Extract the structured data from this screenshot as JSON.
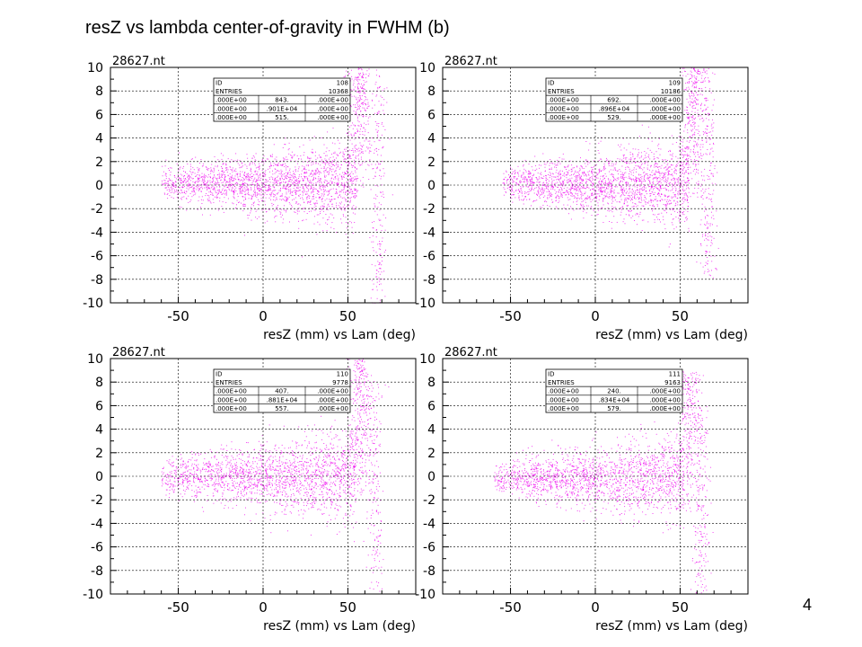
{
  "slide": {
    "title": "resZ vs lambda center-of-gravity in FWHM (b)",
    "page_number": "4"
  },
  "colors": {
    "points": "#ee00ee",
    "axes": "#000000",
    "grid": "#000000"
  },
  "chart_data": [
    {
      "type": "scatter",
      "title": "28627.nt",
      "xlabel": "resZ (mm) vs Lam (deg)",
      "ylabel": "",
      "xlim": [
        -90,
        90
      ],
      "ylim": [
        -10,
        10
      ],
      "xticks": [
        "-50",
        "0",
        "50"
      ],
      "xtick_values": [
        -50,
        0,
        50
      ],
      "yticks": [
        "10",
        "8",
        "6",
        "4",
        "2",
        "0",
        "-2",
        "-4",
        "-6",
        "-8",
        "-10"
      ],
      "ytick_values": [
        10,
        8,
        6,
        4,
        2,
        0,
        -2,
        -4,
        -6,
        -8,
        -10
      ],
      "grid": true,
      "stats_box": [
        [
          "ID",
          "",
          "108"
        ],
        [
          "ENTRIES",
          "",
          "10368"
        ],
        [
          ".000E+00",
          "843.",
          ".000E+00"
        ],
        [
          ".000E+00",
          ".901E+04",
          ".000E+00"
        ],
        [
          ".000E+00",
          "515.",
          ".000E+00"
        ]
      ],
      "point_cloud": {
        "entries": 10368,
        "core_x_range": [
          -60,
          55
        ],
        "core_y_center": 0.2,
        "core_y_spread": 1.3,
        "spike_x": 57,
        "spike_y_range": [
          -1,
          10
        ],
        "tail_x": 68,
        "tail_y_range": [
          -10,
          10
        ]
      }
    },
    {
      "type": "scatter",
      "title": "28627.nt",
      "xlabel": "resZ (mm) vs Lam (deg)",
      "ylabel": "",
      "xlim": [
        -90,
        90
      ],
      "ylim": [
        -10,
        10
      ],
      "xticks": [
        "-50",
        "0",
        "50"
      ],
      "xtick_values": [
        -50,
        0,
        50
      ],
      "yticks": [
        "10",
        "8",
        "6",
        "4",
        "2",
        "0",
        "-2",
        "-4",
        "-6",
        "-8",
        "-10"
      ],
      "ytick_values": [
        10,
        8,
        6,
        4,
        2,
        0,
        -2,
        -4,
        -6,
        -8,
        -10
      ],
      "grid": true,
      "stats_box": [
        [
          "ID",
          "",
          "109"
        ],
        [
          "ENTRIES",
          "",
          "10186"
        ],
        [
          ".000E+00",
          "692.",
          ".000E+00"
        ],
        [
          ".000E+00",
          ".896E+04",
          ".000E+00"
        ],
        [
          ".000E+00",
          "529.",
          ".000E+00"
        ]
      ],
      "point_cloud": {
        "entries": 10186,
        "core_x_range": [
          -55,
          55
        ],
        "core_y_center": 0.1,
        "core_y_spread": 1.3,
        "spike_x": 58,
        "spike_y_range": [
          -1,
          10
        ],
        "tail_x": 66,
        "tail_y_range": [
          -8,
          10
        ]
      }
    },
    {
      "type": "scatter",
      "title": "28627.nt",
      "xlabel": "resZ (mm) vs Lam (deg)",
      "ylabel": "",
      "xlim": [
        -90,
        90
      ],
      "ylim": [
        -10,
        10
      ],
      "xticks": [
        "-50",
        "0",
        "50"
      ],
      "xtick_values": [
        -50,
        0,
        50
      ],
      "yticks": [
        "10",
        "8",
        "6",
        "4",
        "2",
        "0",
        "-2",
        "-4",
        "-6",
        "-8",
        "-10"
      ],
      "ytick_values": [
        10,
        8,
        6,
        4,
        2,
        0,
        -2,
        -4,
        -6,
        -8,
        -10
      ],
      "grid": true,
      "stats_box": [
        [
          "ID",
          "",
          "110"
        ],
        [
          "ENTRIES",
          "",
          "9778"
        ],
        [
          ".000E+00",
          "407.",
          ".000E+00"
        ],
        [
          ".000E+00",
          ".881E+04",
          ".000E+00"
        ],
        [
          ".000E+00",
          "557.",
          ".000E+00"
        ]
      ],
      "point_cloud": {
        "entries": 9778,
        "core_x_range": [
          -60,
          55
        ],
        "core_y_center": 0.0,
        "core_y_spread": 1.4,
        "spike_x": 57,
        "spike_y_range": [
          -2,
          10
        ],
        "tail_x": 66,
        "tail_y_range": [
          -10,
          8
        ]
      }
    },
    {
      "type": "scatter",
      "title": "28627.nt",
      "xlabel": "resZ (mm) vs Lam (deg)",
      "ylabel": "",
      "xlim": [
        -90,
        90
      ],
      "ylim": [
        -10,
        10
      ],
      "xticks": [
        "-50",
        "0",
        "50"
      ],
      "xtick_values": [
        -50,
        0,
        50
      ],
      "yticks": [
        "10",
        "8",
        "6",
        "4",
        "2",
        "0",
        "-2",
        "-4",
        "-6",
        "-8",
        "-10"
      ],
      "ytick_values": [
        10,
        8,
        6,
        4,
        2,
        0,
        -2,
        -4,
        -6,
        -8,
        -10
      ],
      "grid": true,
      "stats_box": [
        [
          "ID",
          "",
          "111"
        ],
        [
          "ENTRIES",
          "",
          "9163"
        ],
        [
          ".000E+00",
          "240.",
          ".000E+00"
        ],
        [
          ".000E+00",
          ".834E+04",
          ".000E+00"
        ],
        [
          ".000E+00",
          "579.",
          ".000E+00"
        ]
      ],
      "point_cloud": {
        "entries": 9163,
        "core_x_range": [
          -60,
          52
        ],
        "core_y_center": -0.1,
        "core_y_spread": 1.3,
        "spike_x": 55,
        "spike_y_range": [
          -3,
          9
        ],
        "tail_x": 62,
        "tail_y_range": [
          -10,
          6
        ]
      }
    }
  ]
}
